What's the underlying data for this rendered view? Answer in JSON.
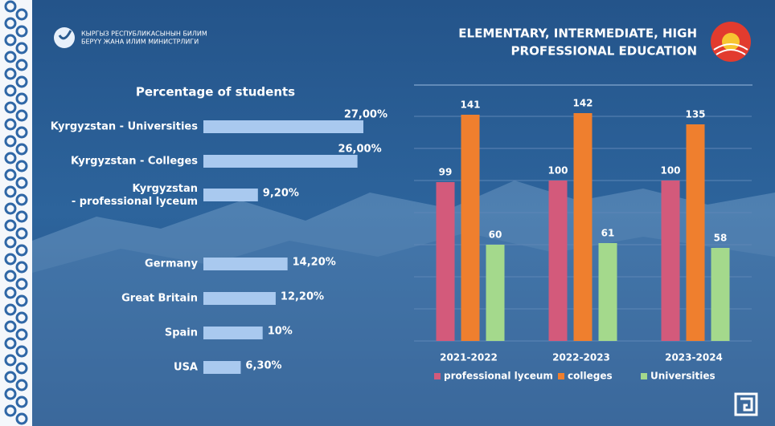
{
  "header": {
    "ministry": [
      "КЫРГЫЗ РЕСПУБЛИКАСЫНЫН БИЛИМ",
      "БЕРҮҮ ЖАНА ИЛИМ МИНИСТРЛИГИ"
    ],
    "title": [
      "ELEMENTARY, INTERMEDIATE, HIGH",
      "PROFESSIONAL EDUCATION"
    ]
  },
  "chart_data": [
    {
      "type": "hbar",
      "title": "Percentage of students",
      "categories": [
        "Kyrgyzstan - Universities",
        "Kyrgyzstan - Colleges",
        "Kyrgyzstan\n - professional lyceum",
        "Germany",
        "Great Britain",
        "Spain",
        "USA"
      ],
      "values": [
        27,
        26,
        9.2,
        14.2,
        12.2,
        10,
        6.3
      ],
      "value_labels": [
        "27,00%",
        "26,00%",
        "9,20%",
        "14,20%",
        "12,20%",
        "10%",
        "6,30%"
      ],
      "color": "#a9c9ef"
    },
    {
      "type": "bar",
      "categories": [
        "2021-2022",
        "2022-2023",
        "2023-2024"
      ],
      "series": [
        {
          "name": "professional lyceum",
          "color": "#d35a7b",
          "values": [
            99,
            100,
            100
          ]
        },
        {
          "name": "colleges",
          "color": "#ef7f2e",
          "values": [
            141,
            142,
            135
          ]
        },
        {
          "name": "Universities",
          "color": "#a4d98c",
          "values": [
            60,
            61,
            58
          ]
        }
      ],
      "ylim": [
        0,
        150
      ],
      "yticks": [
        0,
        20,
        40,
        60,
        80,
        100,
        120,
        140
      ],
      "grid": true,
      "legend": "bottom"
    }
  ]
}
